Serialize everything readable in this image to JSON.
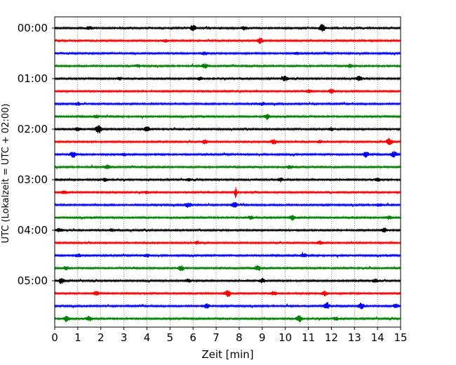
{
  "chart_data": {
    "type": "line",
    "title": "",
    "xlabel": "Zeit  [min]",
    "ylabel": "UTC (Lokalzeit = UTC + 02:00)",
    "xlim": [
      0,
      15
    ],
    "x_ticks": [
      "0",
      "1",
      "2",
      "3",
      "4",
      "5",
      "6",
      "7",
      "8",
      "9",
      "10",
      "11",
      "12",
      "13",
      "14",
      "15"
    ],
    "y_tick_labels": [
      "00:00",
      "01:00",
      "02:00",
      "03:00",
      "04:00",
      "05:00"
    ],
    "grid": "vertical dotted",
    "trace_colors": [
      "#000000",
      "#ff0000",
      "#0000ff",
      "#008000"
    ],
    "traces": [
      {
        "time": "00:00",
        "color": "#000000",
        "events": [
          [
            6.0,
            0.6
          ],
          [
            11.6,
            0.7
          ],
          [
            1.5,
            0.35
          ],
          [
            8.2,
            0.35
          ]
        ]
      },
      {
        "time": "00:15",
        "color": "#ff0000",
        "events": [
          [
            8.9,
            0.6
          ],
          [
            4.8,
            0.25
          ]
        ]
      },
      {
        "time": "00:30",
        "color": "#0000ff",
        "events": [
          [
            6.5,
            0.3
          ],
          [
            10.5,
            0.25
          ]
        ]
      },
      {
        "time": "00:45",
        "color": "#008000",
        "events": [
          [
            6.5,
            0.45
          ],
          [
            12.8,
            0.3
          ],
          [
            3.6,
            0.25
          ]
        ]
      },
      {
        "time": "01:00",
        "color": "#000000",
        "events": [
          [
            10.0,
            0.55
          ],
          [
            13.2,
            0.5
          ],
          [
            6.3,
            0.3
          ],
          [
            2.8,
            0.25
          ]
        ]
      },
      {
        "time": "01:15",
        "color": "#ff0000",
        "events": [
          [
            12.0,
            0.45
          ],
          [
            11.0,
            0.3
          ]
        ]
      },
      {
        "time": "01:30",
        "color": "#0000ff",
        "events": [
          [
            1.0,
            0.25
          ],
          [
            9.0,
            0.25
          ]
        ]
      },
      {
        "time": "01:45",
        "color": "#008000",
        "events": [
          [
            9.2,
            0.55
          ],
          [
            1.8,
            0.3
          ]
        ]
      },
      {
        "time": "02:00",
        "color": "#000000",
        "events": [
          [
            1.9,
            0.85
          ],
          [
            4.0,
            0.5
          ],
          [
            1.0,
            0.35
          ],
          [
            12.0,
            0.3
          ]
        ]
      },
      {
        "time": "02:15",
        "color": "#ff0000",
        "events": [
          [
            14.5,
            0.65
          ],
          [
            6.5,
            0.4
          ],
          [
            9.5,
            0.45
          ],
          [
            11.5,
            0.3
          ]
        ]
      },
      {
        "time": "02:30",
        "color": "#0000ff",
        "events": [
          [
            0.8,
            0.55
          ],
          [
            14.7,
            0.6
          ],
          [
            13.5,
            0.5
          ],
          [
            3.0,
            0.3
          ]
        ]
      },
      {
        "time": "02:45",
        "color": "#008000",
        "events": [
          [
            2.3,
            0.35
          ],
          [
            10.2,
            0.3
          ]
        ]
      },
      {
        "time": "03:00",
        "color": "#000000",
        "events": [
          [
            2.2,
            0.3
          ],
          [
            5.8,
            0.25
          ],
          [
            9.8,
            0.35
          ],
          [
            14.0,
            0.35
          ]
        ]
      },
      {
        "time": "03:15",
        "color": "#ff0000",
        "events": [
          [
            7.85,
            1.5
          ],
          [
            0.4,
            0.3
          ],
          [
            4.0,
            0.25
          ]
        ]
      },
      {
        "time": "03:30",
        "color": "#0000ff",
        "events": [
          [
            5.8,
            0.45
          ],
          [
            7.8,
            0.55
          ],
          [
            14.1,
            0.3
          ]
        ]
      },
      {
        "time": "03:45",
        "color": "#008000",
        "events": [
          [
            10.3,
            0.5
          ],
          [
            8.5,
            0.35
          ],
          [
            14.5,
            0.3
          ]
        ]
      },
      {
        "time": "04:00",
        "color": "#000000",
        "events": [
          [
            0.2,
            0.4
          ],
          [
            14.3,
            0.45
          ],
          [
            2.5,
            0.25
          ]
        ]
      },
      {
        "time": "04:15",
        "color": "#ff0000",
        "events": [
          [
            6.2,
            0.3
          ],
          [
            11.5,
            0.3
          ]
        ]
      },
      {
        "time": "04:30",
        "color": "#0000ff",
        "events": [
          [
            1.0,
            0.35
          ],
          [
            10.8,
            0.4
          ],
          [
            4.0,
            0.3
          ]
        ]
      },
      {
        "time": "04:45",
        "color": "#008000",
        "events": [
          [
            5.5,
            0.5
          ],
          [
            8.8,
            0.55
          ],
          [
            0.5,
            0.3
          ]
        ]
      },
      {
        "time": "05:00",
        "color": "#000000",
        "events": [
          [
            0.3,
            0.55
          ],
          [
            9.0,
            0.45
          ],
          [
            13.9,
            0.35
          ],
          [
            5.8,
            0.3
          ]
        ]
      },
      {
        "time": "05:15",
        "color": "#ff0000",
        "events": [
          [
            7.5,
            0.6
          ],
          [
            11.7,
            0.55
          ],
          [
            1.8,
            0.4
          ],
          [
            9.5,
            0.35
          ]
        ]
      },
      {
        "time": "05:30",
        "color": "#0000ff",
        "events": [
          [
            11.8,
            0.6
          ],
          [
            13.3,
            0.55
          ],
          [
            6.6,
            0.4
          ],
          [
            14.8,
            0.45
          ]
        ]
      },
      {
        "time": "05:45",
        "color": "#008000",
        "events": [
          [
            0.5,
            0.6
          ],
          [
            10.6,
            0.65
          ],
          [
            1.5,
            0.45
          ],
          [
            12.2,
            0.3
          ]
        ]
      }
    ]
  }
}
